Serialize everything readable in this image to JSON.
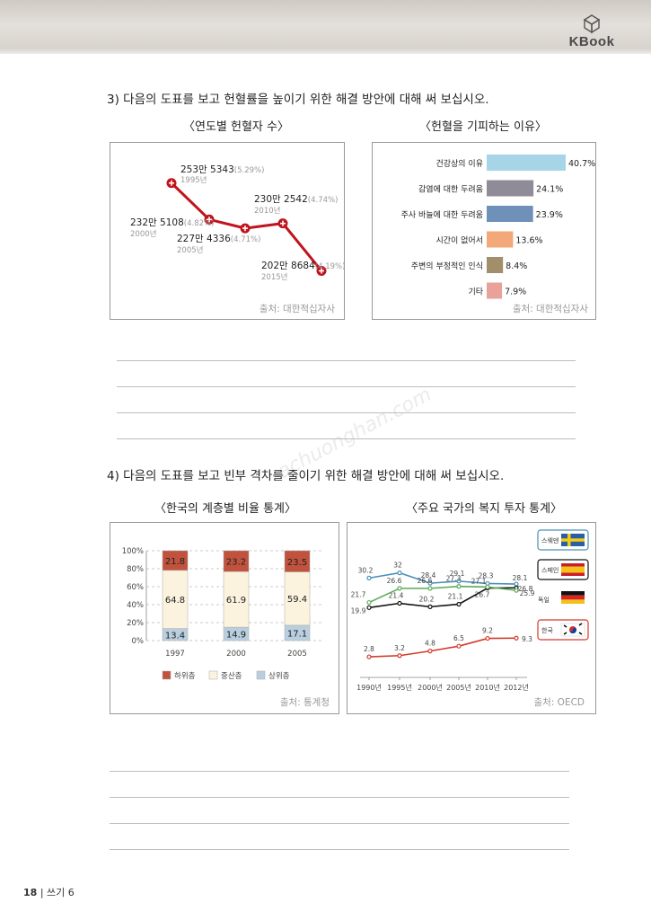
{
  "header": {
    "brand": "KBook"
  },
  "q3": {
    "title": "3) 다음의 도표를 보고 헌혈률을 높이기 위한 해결 방안에 대해 써 보십시오.",
    "left_title": "〈연도별 헌혈자 수〉",
    "right_title": "〈헌혈을 기피하는 이유〉",
    "left_source": "출처: 대한적십자사",
    "right_source": "출처: 대한적십자사"
  },
  "q4": {
    "title": "4) 다음의 도표를 보고 빈부 격차를 줄이기 위한 해결 방안에 대해 써 보십시오.",
    "left_title": "〈한국의 계층별 비율 통계〉",
    "right_title": "〈주요 국가의 복지 투자 통계〉",
    "left_source": "출처: 통계청",
    "right_source": "출처: OECD"
  },
  "footer": {
    "page": "18",
    "section": "쓰기 6"
  },
  "watermark": "achuonghan.com",
  "chart_data": [
    {
      "type": "line",
      "title": "〈연도별 헌혈자 수〉",
      "color": "#c0141c",
      "points": [
        {
          "value": "253만 5343",
          "pct": "(5.29%)",
          "year": "1995년"
        },
        {
          "value": "232만 5108",
          "pct": "(4.82%)",
          "year": "2000년"
        },
        {
          "value": "227만 4336",
          "pct": "(4.71%)",
          "year": "2005년"
        },
        {
          "value": "230만 2542",
          "pct": "(4.74%)",
          "year": "2010년"
        },
        {
          "value": "202만 8684",
          "pct": "(4.19%)",
          "year": "2015년"
        }
      ],
      "y": [
        253.5343,
        232.5108,
        227.4336,
        230.2542,
        202.8684
      ]
    },
    {
      "type": "bar",
      "title": "〈헌혈을 기피하는 이유〉",
      "orientation": "horizontal",
      "categories": [
        "건강상의 이유",
        "감염에 대한 두려움",
        "주사 바늘에 대한 두려움",
        "시간이 없어서",
        "주변의 부정적인 인식",
        "기타"
      ],
      "values": [
        40.7,
        24.1,
        23.9,
        13.6,
        8.4,
        7.9
      ],
      "labels": [
        "40.7%",
        "24.1%",
        "23.9%",
        "13.6%",
        "8.4%",
        "7.9%"
      ],
      "colors": [
        "#a6d5e8",
        "#8f8b97",
        "#6f90b8",
        "#f2a878",
        "#a08f6a",
        "#e9a29a"
      ]
    },
    {
      "type": "bar",
      "title": "〈한국의 계층별 비율 통계〉",
      "stacked": true,
      "categories": [
        "1997",
        "2000",
        "2005"
      ],
      "yticks": [
        "0%",
        "20%",
        "40%",
        "60%",
        "80%",
        "100%"
      ],
      "ylim": [
        0,
        100
      ],
      "series": [
        {
          "name": "상위층",
          "values": [
            13.4,
            14.9,
            17.1
          ],
          "labels": [
            "13.4",
            "14.9",
            "17.1"
          ],
          "color": "#b9cfe0"
        },
        {
          "name": "중산층",
          "values": [
            64.8,
            61.9,
            59.4
          ],
          "labels": [
            "64.8",
            "61.9",
            "59.4"
          ],
          "color": "#fbf3de"
        },
        {
          "name": "하위층",
          "values": [
            21.8,
            23.2,
            23.5
          ],
          "labels": [
            "21.8",
            "23.2",
            "23.5"
          ],
          "color": "#c0523e"
        }
      ],
      "legend": [
        "하위층",
        "중산층",
        "상위층"
      ]
    },
    {
      "type": "line",
      "title": "〈주요 국가의 복지 투자 통계〉",
      "x": [
        "1990년",
        "1995년",
        "2000년",
        "2005년",
        "2010년",
        "2012년"
      ],
      "series": [
        {
          "name": "스웨덴",
          "values": [
            30.2,
            32,
            28.4,
            29.1,
            28.3,
            28.1
          ],
          "labels": [
            "30.2",
            "32",
            "28.4",
            "29.1",
            "28.3",
            "28.1"
          ],
          "color": "#4a90b8"
        },
        {
          "name": "스페인",
          "values": [
            19.9,
            21.4,
            20.2,
            21.1,
            26.7,
            26.8
          ],
          "labels": [
            "19.9",
            "21.4",
            "20.2",
            "21.1",
            "26.7",
            "26.8"
          ],
          "color": "#111111"
        },
        {
          "name": "독일",
          "values": [
            21.7,
            26.6,
            26.6,
            27.3,
            27.1,
            25.9
          ],
          "labels": [
            "21.7",
            "26.6",
            "26.6",
            "27.3",
            "27.1",
            "25.9"
          ],
          "color": "#5cab58"
        },
        {
          "name": "한국",
          "values": [
            2.8,
            3.2,
            4.8,
            6.5,
            9.2,
            9.3
          ],
          "labels": [
            "2.8",
            "3.2",
            "4.8",
            "6.5",
            "9.2",
            "9.3"
          ],
          "color": "#d43a2a"
        }
      ]
    }
  ]
}
